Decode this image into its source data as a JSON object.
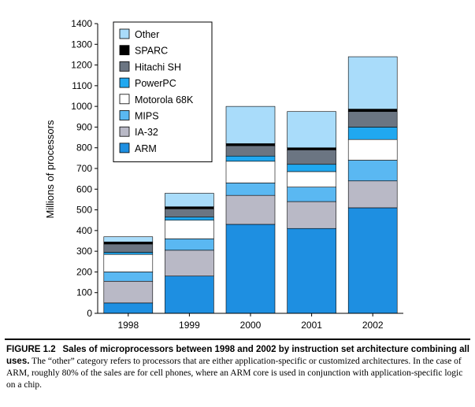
{
  "chart_data": {
    "type": "bar",
    "stacked": true,
    "title": "",
    "xlabel": "",
    "ylabel": "Millions of processors",
    "ylim": [
      0,
      1400
    ],
    "yticks": [
      0,
      100,
      200,
      300,
      400,
      500,
      600,
      700,
      800,
      900,
      1000,
      1100,
      1200,
      1300,
      1400
    ],
    "categories": [
      "1998",
      "1999",
      "2000",
      "2001",
      "2002"
    ],
    "grid": false,
    "legend_position": "top-left",
    "series": [
      {
        "name": "ARM",
        "color": "#1e8fe1",
        "values": [
          50,
          180,
          430,
          410,
          510
        ]
      },
      {
        "name": "IA-32",
        "color": "#b9b9c6",
        "values": [
          105,
          125,
          140,
          130,
          130
        ]
      },
      {
        "name": "MIPS",
        "color": "#5ab8f2",
        "values": [
          45,
          55,
          60,
          70,
          100
        ]
      },
      {
        "name": "Motorola 68K",
        "color": "#ffffff",
        "values": [
          85,
          90,
          105,
          75,
          100
        ]
      },
      {
        "name": "PowerPC",
        "color": "#20a8f0",
        "values": [
          10,
          15,
          25,
          35,
          60
        ]
      },
      {
        "name": "Hitachi SH",
        "color": "#6b7582",
        "values": [
          40,
          40,
          50,
          70,
          75
        ]
      },
      {
        "name": "SPARC",
        "color": "#000000",
        "values": [
          10,
          10,
          10,
          10,
          12
        ]
      },
      {
        "name": "Other",
        "color": "#a9dcfa",
        "values": [
          25,
          65,
          180,
          175,
          253
        ]
      }
    ]
  },
  "caption": {
    "label": "FIGURE 1.2",
    "bold_text": "Sales of microprocessors between 1998 and 2002 by instruction set architecture combining all uses.",
    "body_text": "The “other” category refers to processors that are either application-specific or customized architectures. In the case of ARM, roughly 80% of the sales are for cell phones, where an ARM core is used in conjunction with application-specific logic on a chip."
  }
}
